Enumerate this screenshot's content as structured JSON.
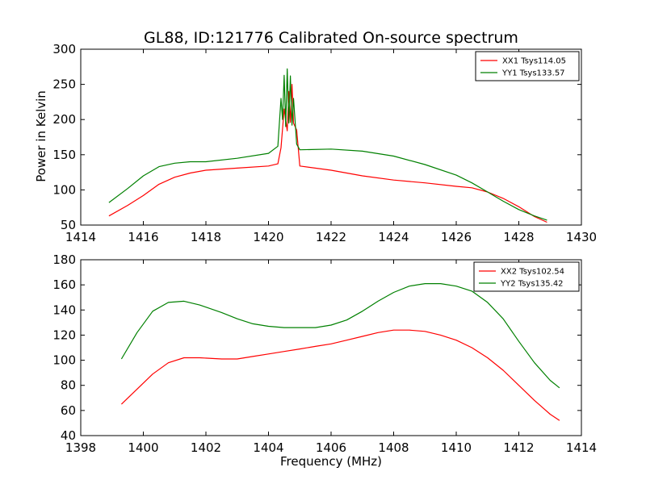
{
  "figure": {
    "title": "GL88, ID:121776 Calibrated On-source spectrum",
    "ylabel": "Power in Kelvin",
    "xlabel": "Frequency (MHz)",
    "colors": {
      "red": "#ff0000",
      "green": "#008000"
    }
  },
  "chart_data": [
    {
      "type": "line",
      "xlim": [
        1414,
        1430
      ],
      "ylim": [
        50,
        300
      ],
      "xticks": [
        1414,
        1416,
        1418,
        1420,
        1422,
        1424,
        1426,
        1428,
        1430
      ],
      "yticks": [
        50,
        100,
        150,
        200,
        250,
        300
      ],
      "legend": "top-right",
      "series": [
        {
          "name": "XX1 Tsys114.05",
          "color": "#ff0000",
          "x": [
            1414.9,
            1415.5,
            1416,
            1416.5,
            1417,
            1417.5,
            1418,
            1419,
            1420,
            1420.3,
            1420.4,
            1420.5,
            1420.6,
            1420.65,
            1420.7,
            1420.75,
            1420.8,
            1420.9,
            1421,
            1422,
            1423,
            1424,
            1425,
            1426,
            1426.5,
            1427,
            1427.5,
            1428,
            1428.5,
            1428.9
          ],
          "y": [
            63,
            78,
            92,
            108,
            118,
            124,
            128,
            131,
            134,
            137,
            160,
            215,
            184,
            240,
            196,
            250,
            195,
            185,
            134,
            128,
            120,
            114,
            110,
            105,
            103,
            97,
            88,
            76,
            62,
            54
          ]
        },
        {
          "name": "YY1 Tsys133.57",
          "color": "#008000",
          "x": [
            1414.9,
            1415.5,
            1416,
            1416.5,
            1417,
            1417.5,
            1418,
            1419,
            1420,
            1420.3,
            1420.4,
            1420.45,
            1420.5,
            1420.55,
            1420.6,
            1420.65,
            1420.7,
            1420.75,
            1420.8,
            1420.9,
            1421,
            1422,
            1423,
            1424,
            1425,
            1426,
            1426.5,
            1427,
            1427.5,
            1428,
            1428.5,
            1428.9
          ],
          "y": [
            82,
            102,
            120,
            133,
            138,
            140,
            140,
            145,
            152,
            162,
            230,
            200,
            263,
            190,
            272,
            195,
            262,
            192,
            230,
            165,
            157,
            158,
            155,
            148,
            136,
            121,
            110,
            97,
            84,
            72,
            63,
            57
          ]
        }
      ]
    },
    {
      "type": "line",
      "xlim": [
        1398,
        1414
      ],
      "ylim": [
        40,
        180
      ],
      "xticks": [
        1398,
        1400,
        1402,
        1404,
        1406,
        1408,
        1410,
        1412,
        1414
      ],
      "yticks": [
        40,
        60,
        80,
        100,
        120,
        140,
        160,
        180
      ],
      "legend": "top-right",
      "series": [
        {
          "name": "XX2 Tsys102.54",
          "color": "#ff0000",
          "x": [
            1399.3,
            1399.8,
            1400.3,
            1400.8,
            1401.3,
            1401.8,
            1402.5,
            1403,
            1403.5,
            1404,
            1404.5,
            1405,
            1405.5,
            1406,
            1406.5,
            1407,
            1407.5,
            1408,
            1408.5,
            1409,
            1409.5,
            1410,
            1410.5,
            1411,
            1411.5,
            1412,
            1412.5,
            1413,
            1413.3
          ],
          "y": [
            65,
            77,
            89,
            98,
            102,
            102,
            101,
            101,
            103,
            105,
            107,
            109,
            111,
            113,
            116,
            119,
            122,
            124,
            124,
            123,
            120,
            116,
            110,
            102,
            92,
            80,
            68,
            57,
            52
          ]
        },
        {
          "name": "YY2 Tsys135.42",
          "color": "#008000",
          "x": [
            1399.3,
            1399.8,
            1400.3,
            1400.8,
            1401.3,
            1401.8,
            1402.5,
            1403,
            1403.5,
            1404,
            1404.5,
            1405,
            1405.5,
            1406,
            1406.5,
            1407,
            1407.5,
            1408,
            1408.5,
            1409,
            1409.5,
            1410,
            1410.5,
            1411,
            1411.5,
            1412,
            1412.5,
            1413,
            1413.3
          ],
          "y": [
            101,
            122,
            139,
            146,
            147,
            144,
            138,
            133,
            129,
            127,
            126,
            126,
            126,
            128,
            132,
            139,
            147,
            154,
            159,
            161,
            161,
            159,
            155,
            146,
            133,
            115,
            98,
            84,
            78
          ]
        }
      ]
    }
  ]
}
